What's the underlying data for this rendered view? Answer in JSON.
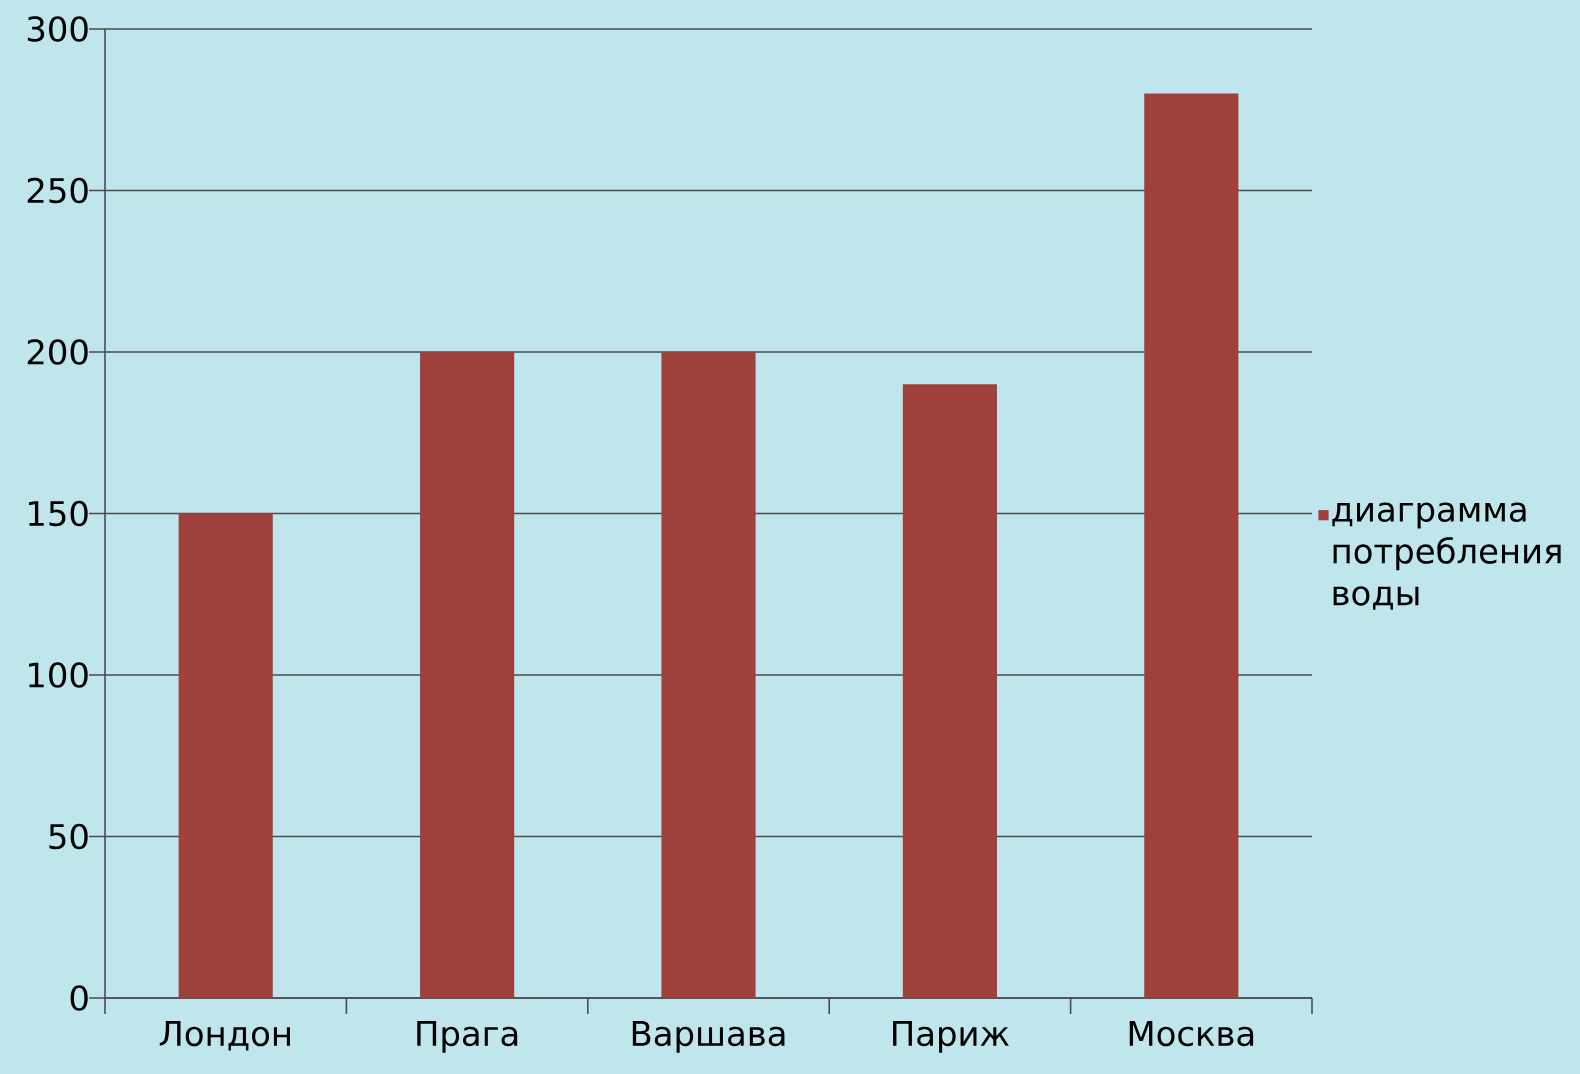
{
  "chart_data": {
    "type": "bar",
    "categories": [
      "Лондон",
      "Прага",
      "Варшава",
      "Париж",
      "Москва"
    ],
    "series": [
      {
        "name": "диаграмма потребления воды",
        "color": "#a0403c",
        "values": [
          150,
          200,
          200,
          190,
          280
        ]
      }
    ],
    "ylim": [
      0,
      300
    ],
    "yticks": [
      0,
      50,
      100,
      150,
      200,
      250,
      300
    ],
    "grid": "y",
    "legend": "right"
  }
}
